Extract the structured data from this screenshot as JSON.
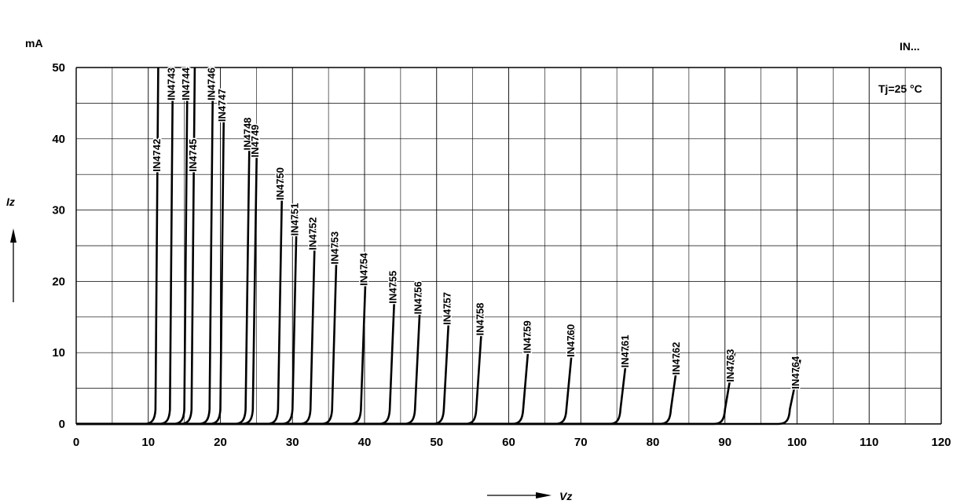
{
  "chart_data": {
    "type": "line",
    "title": "IN...",
    "condition": "Tj=25 °C",
    "xlabel": "Vz",
    "ylabel": "Iz",
    "yunit": "mA",
    "xlim": [
      0,
      120
    ],
    "ylim": [
      0,
      50
    ],
    "x_ticks": [
      "0",
      "10",
      "20",
      "30",
      "40",
      "50",
      "60",
      "70",
      "80",
      "90",
      "100",
      "110",
      "120"
    ],
    "y_ticks": [
      "0",
      "10",
      "20",
      "30",
      "40",
      "50"
    ],
    "grid": true,
    "series": [
      {
        "name": "IN4742",
        "vz": 11,
        "imax": 50,
        "label_y": 40
      },
      {
        "name": "IN4743",
        "vz": 13,
        "imax": 50,
        "label_y": 50
      },
      {
        "name": "IN4744",
        "vz": 15,
        "imax": 50,
        "label_y": 50
      },
      {
        "name": "IN4745",
        "vz": 16,
        "imax": 50,
        "label_y": 40
      },
      {
        "name": "IN4746",
        "vz": 18.5,
        "imax": 50,
        "label_y": 50
      },
      {
        "name": "IN4747",
        "vz": 20,
        "imax": 45,
        "label_y": 47
      },
      {
        "name": "IN4748",
        "vz": 23.5,
        "imax": 40,
        "label_y": 43
      },
      {
        "name": "IN4749",
        "vz": 24.5,
        "imax": 38.5,
        "label_y": 42
      },
      {
        "name": "IN4750",
        "vz": 28,
        "imax": 35,
        "label_y": 36
      },
      {
        "name": "IN4751",
        "vz": 30,
        "imax": 30,
        "label_y": 31
      },
      {
        "name": "IN4752",
        "vz": 32.5,
        "imax": 28,
        "label_y": 29
      },
      {
        "name": "IN4753",
        "vz": 35.5,
        "imax": 26,
        "label_y": 27
      },
      {
        "name": "IN4754",
        "vz": 39.5,
        "imax": 23,
        "label_y": 24
      },
      {
        "name": "IN4755",
        "vz": 43.5,
        "imax": 21,
        "label_y": 21.5
      },
      {
        "name": "IN4756",
        "vz": 47,
        "imax": 19,
        "label_y": 20
      },
      {
        "name": "IN4757",
        "vz": 51,
        "imax": 18,
        "label_y": 18.5
      },
      {
        "name": "IN4758",
        "vz": 55.5,
        "imax": 16,
        "label_y": 17
      },
      {
        "name": "IN4759",
        "vz": 62,
        "imax": 14,
        "label_y": 14.5
      },
      {
        "name": "IN4760",
        "vz": 68,
        "imax": 13.5,
        "label_y": 14
      },
      {
        "name": "IN4761",
        "vz": 75.5,
        "imax": 12,
        "label_y": 12.5
      },
      {
        "name": "IN4762",
        "vz": 82.5,
        "imax": 11,
        "label_y": 11.5
      },
      {
        "name": "IN4763",
        "vz": 90,
        "imax": 10,
        "label_y": 10.5
      },
      {
        "name": "IN4764",
        "vz": 99,
        "imax": 9,
        "label_y": 9.5
      }
    ]
  }
}
